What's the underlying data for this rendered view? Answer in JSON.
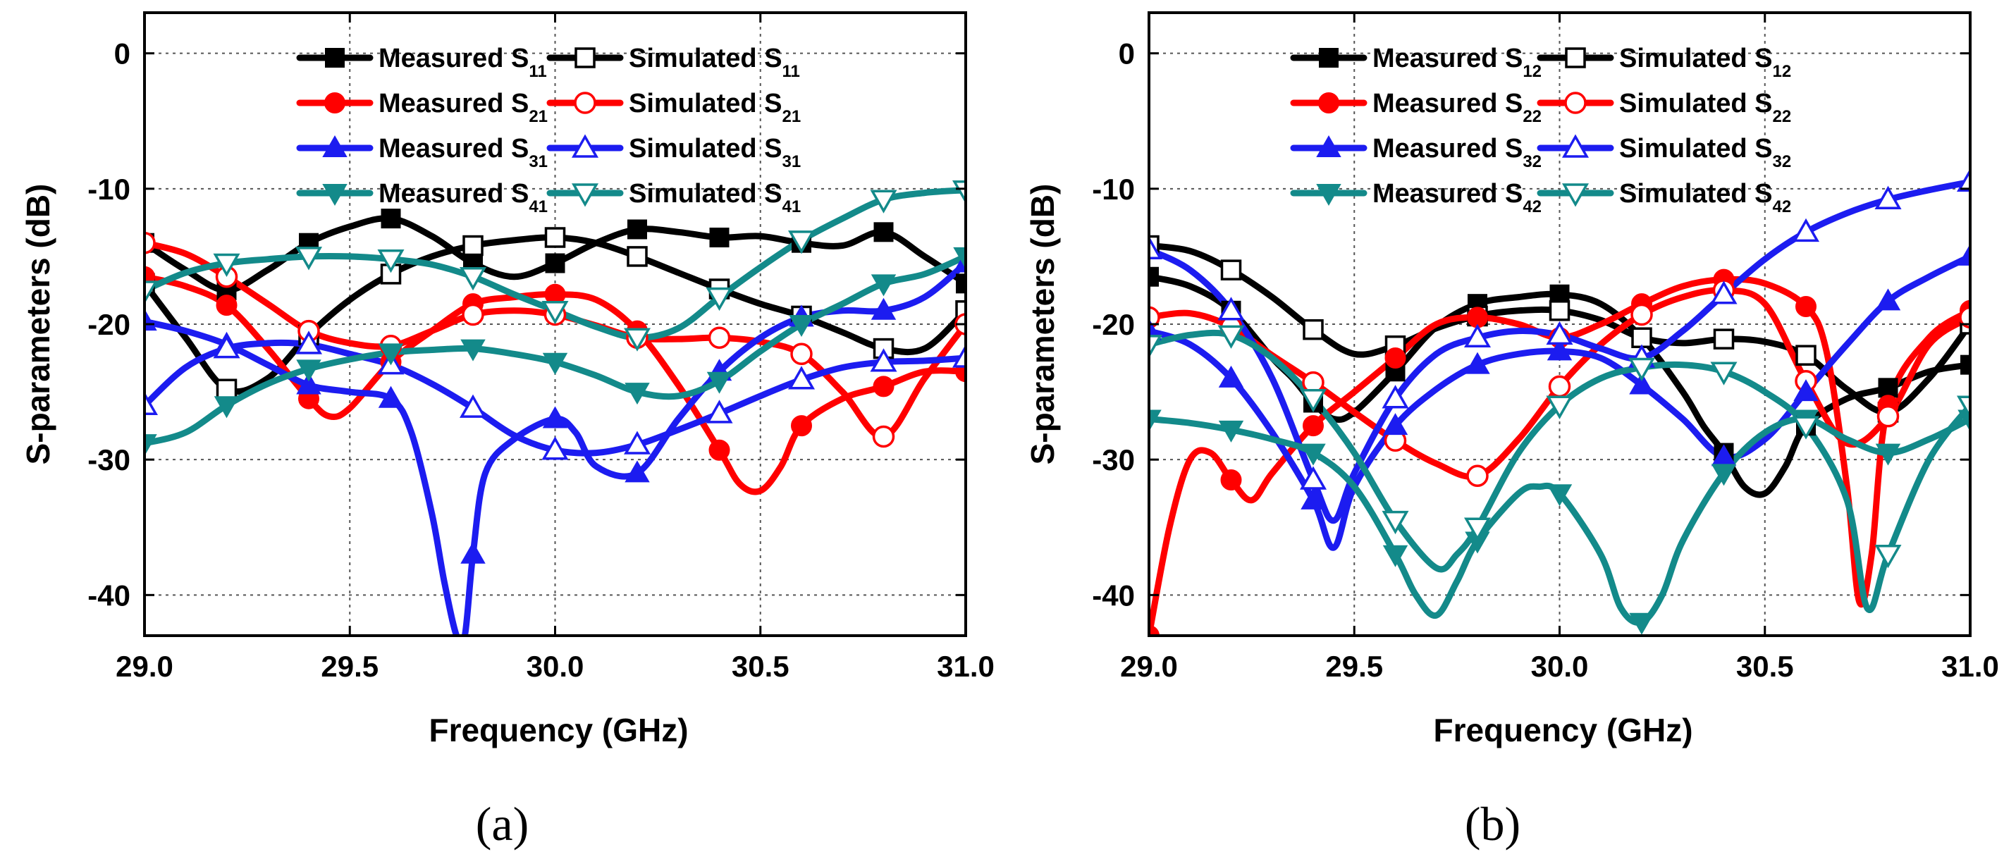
{
  "colors": {
    "black": "#000000",
    "red": "#ff0000",
    "blue": "#1c1cf0",
    "teal": "#138a8a"
  },
  "chart_data": [
    {
      "type": "line",
      "panel_label": "(a)",
      "xlabel": "Frequency (GHz)",
      "ylabel": "S-parameters (dB)",
      "xlim": [
        29.0,
        31.0
      ],
      "ylim": [
        -43,
        3
      ],
      "xticks": [
        29.0,
        29.5,
        30.0,
        30.5,
        31.0
      ],
      "xtick_labels": [
        "29.0",
        "29.5",
        "30.0",
        "30.5",
        "31.0"
      ],
      "yticks": [
        0,
        -10,
        -20,
        -30,
        -40
      ],
      "ytick_labels": [
        "0",
        "-10",
        "-20",
        "-30",
        "-40"
      ],
      "grid": true,
      "legend_position": "top",
      "series": [
        {
          "name": "Measured",
          "sub": "11",
          "color": "black",
          "marker": "square",
          "filled": true,
          "x": [
            29.0,
            29.1,
            29.2,
            29.3,
            29.4,
            29.5,
            29.6,
            29.7,
            29.8,
            29.9,
            30.0,
            30.1,
            30.2,
            30.3,
            30.4,
            30.5,
            30.6,
            30.7,
            30.8,
            30.9,
            31.0
          ],
          "y": [
            -14,
            -16,
            -17.5,
            -16,
            -14,
            -12.8,
            -12.2,
            -13.5,
            -15.5,
            -16.5,
            -15.5,
            -14,
            -13,
            -13.2,
            -13.6,
            -13.5,
            -14,
            -14.2,
            -13.2,
            -15,
            -17
          ]
        },
        {
          "name": "Simulated",
          "sub": "11",
          "color": "black",
          "marker": "square",
          "filled": false,
          "x": [
            29.0,
            29.1,
            29.2,
            29.3,
            29.4,
            29.5,
            29.6,
            29.7,
            29.8,
            29.9,
            30.0,
            30.1,
            30.2,
            30.3,
            30.4,
            30.5,
            30.6,
            30.7,
            30.8,
            30.9,
            31.0
          ],
          "y": [
            -17,
            -21,
            -24.8,
            -24,
            -20.8,
            -18.2,
            -16.3,
            -15,
            -14.2,
            -13.8,
            -13.6,
            -14,
            -15,
            -16.2,
            -17.4,
            -18.5,
            -19.4,
            -20.6,
            -21.8,
            -21.8,
            -19
          ]
        },
        {
          "name": "Measured",
          "sub": "21",
          "color": "red",
          "marker": "circle",
          "filled": true,
          "x": [
            29.0,
            29.1,
            29.2,
            29.3,
            29.4,
            29.45,
            29.5,
            29.6,
            29.7,
            29.8,
            29.9,
            30.0,
            30.1,
            30.2,
            30.3,
            30.4,
            30.45,
            30.5,
            30.55,
            30.6,
            30.7,
            30.8,
            30.9,
            31.0
          ],
          "y": [
            -16.5,
            -17.2,
            -18.6,
            -21.8,
            -25.5,
            -26.8,
            -26.2,
            -22.8,
            -20.5,
            -18.5,
            -18,
            -17.8,
            -18.2,
            -20.5,
            -24.5,
            -29.3,
            -31.8,
            -32.3,
            -30.5,
            -27.5,
            -25.5,
            -24.6,
            -23.5,
            -23.5
          ]
        },
        {
          "name": "Simulated",
          "sub": "21",
          "color": "red",
          "marker": "circle",
          "filled": false,
          "x": [
            29.0,
            29.1,
            29.2,
            29.3,
            29.4,
            29.5,
            29.6,
            29.7,
            29.8,
            29.9,
            30.0,
            30.1,
            30.2,
            30.3,
            30.4,
            30.5,
            30.6,
            30.7,
            30.8,
            30.9,
            31.0
          ],
          "y": [
            -14,
            -14.8,
            -16.5,
            -18.5,
            -20.5,
            -21.4,
            -21.6,
            -20.5,
            -19.3,
            -19,
            -19.3,
            -20.1,
            -21,
            -21.1,
            -21,
            -21.3,
            -22.2,
            -25,
            -28.3,
            -24,
            -20
          ]
        },
        {
          "name": "Measured",
          "sub": "31",
          "color": "blue",
          "marker": "triangle-up",
          "filled": true,
          "x": [
            29.0,
            29.1,
            29.2,
            29.3,
            29.4,
            29.5,
            29.6,
            29.65,
            29.7,
            29.73,
            29.76,
            29.78,
            29.8,
            29.83,
            29.9,
            30.0,
            30.05,
            30.1,
            30.2,
            30.3,
            30.4,
            30.5,
            30.6,
            30.7,
            30.8,
            30.9,
            31.0
          ],
          "y": [
            -19.8,
            -20.5,
            -21.5,
            -23,
            -24.5,
            -25,
            -25.5,
            -28,
            -34,
            -39,
            -43,
            -43,
            -37,
            -31,
            -28.5,
            -27,
            -28,
            -30.5,
            -31,
            -27,
            -23.5,
            -21,
            -19.5,
            -19,
            -19,
            -18,
            -15.5
          ]
        },
        {
          "name": "Simulated",
          "sub": "31",
          "color": "blue",
          "marker": "triangle-up",
          "filled": false,
          "x": [
            29.0,
            29.1,
            29.2,
            29.3,
            29.4,
            29.5,
            29.6,
            29.7,
            29.8,
            29.9,
            30.0,
            30.1,
            30.2,
            30.3,
            30.4,
            30.5,
            30.6,
            30.7,
            30.8,
            30.9,
            31.0
          ],
          "y": [
            -26,
            -23.2,
            -21.8,
            -21.4,
            -21.5,
            -22.2,
            -23,
            -24.4,
            -26.2,
            -28.2,
            -29.3,
            -29.5,
            -28.9,
            -27.8,
            -26.6,
            -25.3,
            -24.1,
            -23.2,
            -22.8,
            -22.7,
            -22.5
          ]
        },
        {
          "name": "Measured",
          "sub": "41",
          "color": "teal",
          "marker": "triangle-down",
          "filled": true,
          "x": [
            29.0,
            29.1,
            29.2,
            29.3,
            29.4,
            29.5,
            29.6,
            29.7,
            29.8,
            29.9,
            30.0,
            30.1,
            30.2,
            30.3,
            30.4,
            30.5,
            30.6,
            30.7,
            30.8,
            30.9,
            31.0
          ],
          "y": [
            -28.8,
            -28,
            -26,
            -24.4,
            -23.3,
            -22.6,
            -22.1,
            -21.9,
            -21.8,
            -22.2,
            -22.8,
            -23.8,
            -25,
            -25.3,
            -24.2,
            -22,
            -20,
            -18.5,
            -17,
            -16.3,
            -15
          ]
        },
        {
          "name": "Simulated",
          "sub": "41",
          "color": "teal",
          "marker": "triangle-down",
          "filled": false,
          "x": [
            29.0,
            29.1,
            29.2,
            29.3,
            29.4,
            29.5,
            29.6,
            29.7,
            29.8,
            29.9,
            30.0,
            30.1,
            30.2,
            30.3,
            30.4,
            30.5,
            30.6,
            30.7,
            30.8,
            30.9,
            31.0
          ],
          "y": [
            -17.5,
            -16.2,
            -15.5,
            -15.2,
            -15,
            -15,
            -15.2,
            -15.6,
            -16.5,
            -17.8,
            -19,
            -20.2,
            -21,
            -20.3,
            -18,
            -15.8,
            -13.8,
            -12.2,
            -10.8,
            -10.3,
            -10.1
          ]
        }
      ]
    },
    {
      "type": "line",
      "panel_label": "(b)",
      "xlabel": "Frequency (GHz)",
      "ylabel": "S-parameters (dB)",
      "xlim": [
        29.0,
        31.0
      ],
      "ylim": [
        -43,
        3
      ],
      "xticks": [
        29.0,
        29.5,
        30.0,
        30.5,
        31.0
      ],
      "xtick_labels": [
        "29.0",
        "29.5",
        "30.0",
        "30.5",
        "31.0"
      ],
      "yticks": [
        0,
        -10,
        -20,
        -30,
        -40
      ],
      "ytick_labels": [
        "0",
        "-10",
        "-20",
        "-30",
        "-40"
      ],
      "grid": true,
      "legend_position": "top",
      "series": [
        {
          "name": "Measured",
          "sub": "12",
          "color": "black",
          "marker": "square",
          "filled": true,
          "x": [
            29.0,
            29.1,
            29.2,
            29.3,
            29.35,
            29.4,
            29.45,
            29.5,
            29.6,
            29.7,
            29.8,
            29.9,
            30.0,
            30.1,
            30.2,
            30.3,
            30.35,
            30.4,
            30.45,
            30.5,
            30.55,
            30.6,
            30.7,
            30.8,
            30.9,
            31.0
          ],
          "y": [
            -16.5,
            -17.2,
            -19,
            -22.5,
            -24,
            -25.8,
            -27,
            -26.5,
            -23.5,
            -20.2,
            -18.5,
            -18,
            -17.8,
            -18.5,
            -21,
            -25,
            -27.5,
            -29.5,
            -32,
            -32.5,
            -30.5,
            -27.5,
            -25.5,
            -24.7,
            -23.5,
            -23
          ]
        },
        {
          "name": "Simulated",
          "sub": "12",
          "color": "black",
          "marker": "square",
          "filled": false,
          "x": [
            29.0,
            29.1,
            29.2,
            29.3,
            29.4,
            29.5,
            29.6,
            29.7,
            29.8,
            29.9,
            30.0,
            30.1,
            30.2,
            30.3,
            30.4,
            30.5,
            30.6,
            30.7,
            30.8,
            30.9,
            31.0
          ],
          "y": [
            -14.2,
            -14.6,
            -16,
            -18,
            -20.4,
            -22.2,
            -21.6,
            -20.3,
            -19.4,
            -19,
            -19,
            -19.7,
            -21,
            -21.4,
            -21.1,
            -21.3,
            -22.3,
            -24.8,
            -26.5,
            -24,
            -20
          ]
        },
        {
          "name": "Measured",
          "sub": "22",
          "color": "red",
          "marker": "circle",
          "filled": true,
          "x": [
            29.0,
            29.05,
            29.1,
            29.15,
            29.2,
            29.25,
            29.3,
            29.4,
            29.5,
            29.6,
            29.7,
            29.8,
            29.9,
            30.0,
            30.1,
            30.2,
            30.3,
            30.4,
            30.5,
            30.6,
            30.65,
            30.7,
            30.73,
            30.76,
            30.8,
            30.9,
            31.0
          ],
          "y": [
            -43,
            -35,
            -30,
            -29.5,
            -31.5,
            -33,
            -31,
            -27.5,
            -25,
            -22.5,
            -20,
            -19.5,
            -20,
            -21,
            -20,
            -18.5,
            -17.2,
            -16.7,
            -17,
            -18.7,
            -22,
            -32,
            -40.5,
            -37,
            -26,
            -21,
            -19
          ]
        },
        {
          "name": "Simulated",
          "sub": "22",
          "color": "red",
          "marker": "circle",
          "filled": false,
          "x": [
            29.0,
            29.1,
            29.2,
            29.3,
            29.4,
            29.5,
            29.6,
            29.7,
            29.8,
            29.9,
            30.0,
            30.1,
            30.2,
            30.3,
            30.4,
            30.5,
            30.6,
            30.7,
            30.8,
            30.9,
            31.0
          ],
          "y": [
            -19.5,
            -19.2,
            -20.2,
            -22.3,
            -24.3,
            -26.5,
            -28.6,
            -30.3,
            -31.2,
            -28.5,
            -24.6,
            -21.5,
            -19.3,
            -18,
            -17.5,
            -18.5,
            -24.2,
            -28.8,
            -26.8,
            -21.5,
            -19.5
          ]
        },
        {
          "name": "Measured",
          "sub": "32",
          "color": "blue",
          "marker": "triangle-up",
          "filled": true,
          "x": [
            29.0,
            29.1,
            29.2,
            29.3,
            29.4,
            29.45,
            29.5,
            29.6,
            29.7,
            29.8,
            29.9,
            30.0,
            30.1,
            30.2,
            30.3,
            30.4,
            30.5,
            30.6,
            30.7,
            30.8,
            30.9,
            31.0
          ],
          "y": [
            -20.5,
            -21.5,
            -24,
            -28,
            -33,
            -36.5,
            -32,
            -27.5,
            -24.8,
            -23,
            -22.2,
            -22,
            -22.5,
            -24.5,
            -27,
            -29.8,
            -28.5,
            -25,
            -21.5,
            -18.3,
            -16.5,
            -15
          ]
        },
        {
          "name": "Simulated",
          "sub": "32",
          "color": "blue",
          "marker": "triangle-up",
          "filled": false,
          "x": [
            29.0,
            29.1,
            29.2,
            29.3,
            29.4,
            29.45,
            29.5,
            29.6,
            29.7,
            29.8,
            29.9,
            30.0,
            30.1,
            30.2,
            30.3,
            30.4,
            30.5,
            30.6,
            30.7,
            30.8,
            30.9,
            31.0
          ],
          "y": [
            -14.5,
            -16,
            -19,
            -24,
            -31.5,
            -34.5,
            -31,
            -25.5,
            -22.2,
            -21,
            -20.5,
            -20.8,
            -21.8,
            -22.5,
            -20.5,
            -17.8,
            -15.2,
            -13.2,
            -11.8,
            -10.8,
            -10.1,
            -9.5
          ]
        },
        {
          "name": "Measured",
          "sub": "42",
          "color": "teal",
          "marker": "triangle-down",
          "filled": true,
          "x": [
            29.0,
            29.1,
            29.2,
            29.3,
            29.4,
            29.5,
            29.6,
            29.65,
            29.7,
            29.75,
            29.8,
            29.9,
            29.95,
            30.0,
            30.1,
            30.15,
            30.2,
            30.25,
            30.3,
            30.4,
            30.5,
            30.6,
            30.7,
            30.8,
            30.9,
            31.0
          ],
          "y": [
            -27,
            -27.3,
            -27.8,
            -28.5,
            -29.5,
            -32,
            -37,
            -40,
            -41.5,
            -39,
            -36,
            -32.5,
            -32,
            -32.5,
            -37,
            -41,
            -42,
            -40,
            -36,
            -31,
            -28,
            -27,
            -28.5,
            -29.5,
            -28.5,
            -27
          ]
        },
        {
          "name": "Simulated",
          "sub": "42",
          "color": "teal",
          "marker": "triangle-down",
          "filled": false,
          "x": [
            29.0,
            29.1,
            29.2,
            29.3,
            29.4,
            29.5,
            29.6,
            29.7,
            29.75,
            29.8,
            29.9,
            30.0,
            30.1,
            30.2,
            30.3,
            30.4,
            30.5,
            30.6,
            30.7,
            30.75,
            30.8,
            30.9,
            31.0
          ],
          "y": [
            -21.5,
            -20.8,
            -20.8,
            -22.5,
            -25.5,
            -29.5,
            -34.5,
            -38,
            -37,
            -35,
            -29.5,
            -26,
            -24,
            -23.2,
            -23,
            -23.5,
            -25,
            -27.5,
            -33,
            -41,
            -37,
            -30,
            -26
          ]
        }
      ]
    }
  ]
}
